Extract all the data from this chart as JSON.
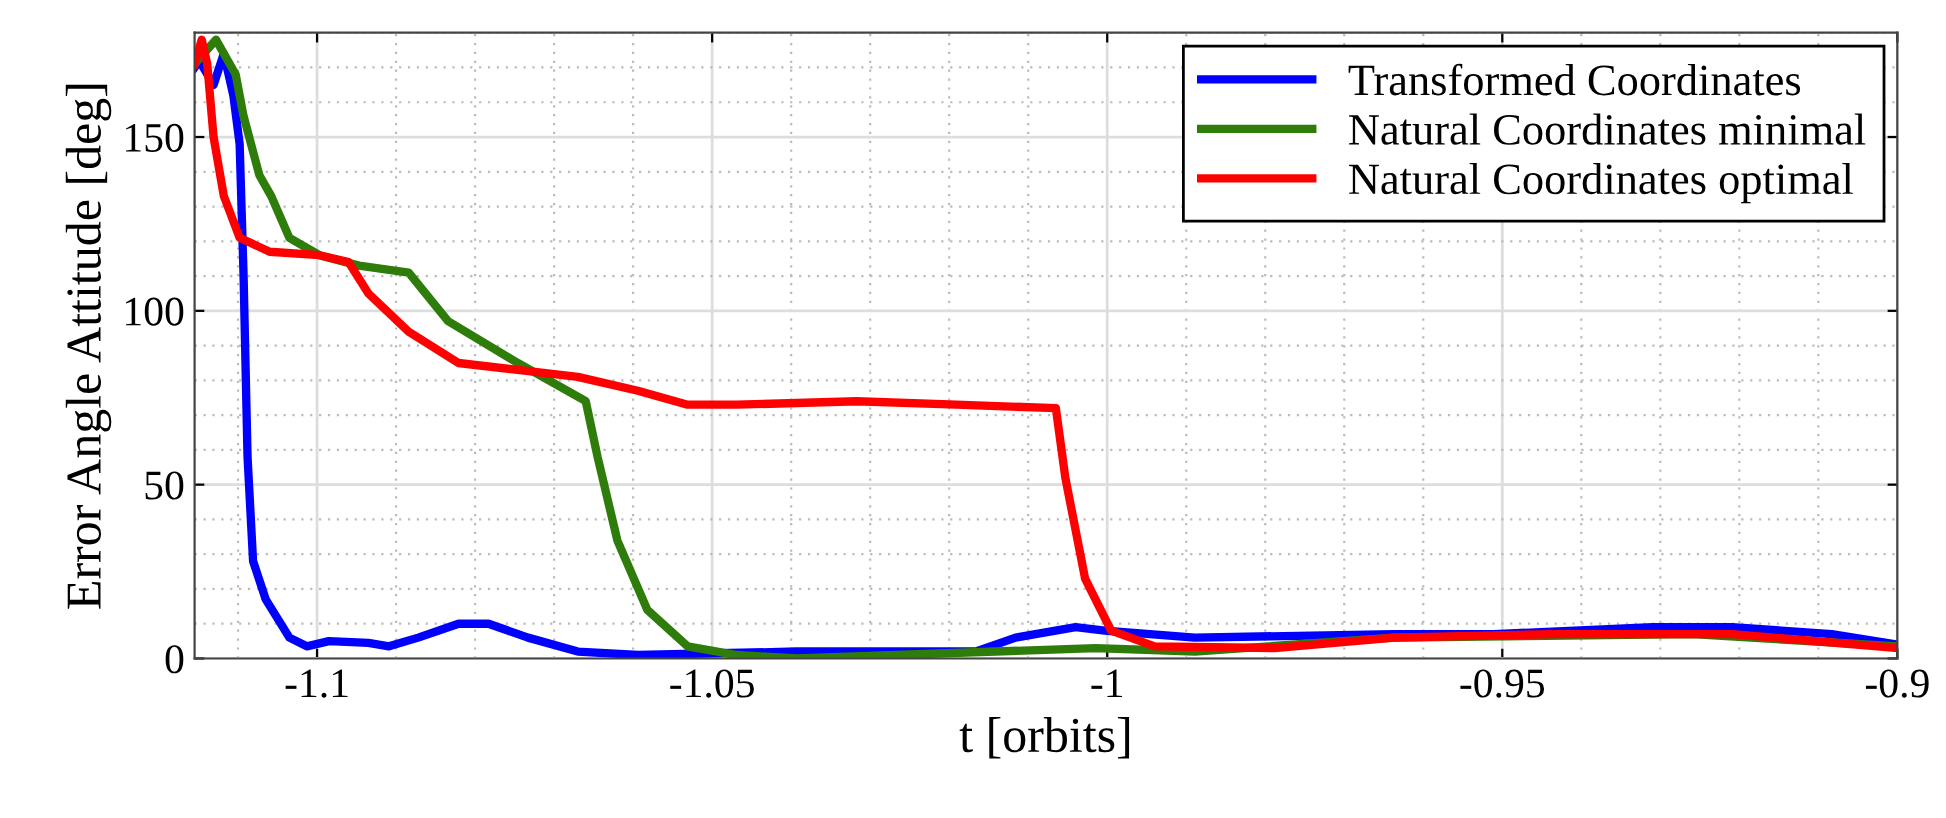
{
  "chart_data": {
    "type": "line",
    "xlabel": "t [orbits]",
    "ylabel": "Error Angle Attitude [deg]",
    "xlim": [
      -1.1155,
      -0.9
    ],
    "ylim": [
      0,
      180
    ],
    "xticks": [
      {
        "value": -1.1,
        "label": "-1.1"
      },
      {
        "value": -1.05,
        "label": "-1.05"
      },
      {
        "value": -1,
        "label": "-1"
      },
      {
        "value": -0.95,
        "label": "-0.95"
      },
      {
        "value": -0.9,
        "label": "-0.9"
      }
    ],
    "yticks": [
      0,
      50,
      100,
      150
    ],
    "grid": true,
    "legend": "top right",
    "line_style": "solid",
    "marker": "none",
    "series": [
      {
        "name": "Transformed Coordinates",
        "color": "#0000ff",
        "x": [
          -1.1155,
          -1.1149,
          -1.1131,
          -1.1118,
          -1.1106,
          -1.1098,
          -1.1093,
          -1.1088,
          -1.1081,
          -1.1065,
          -1.1035,
          -1.1013,
          -1.0985,
          -1.0935,
          -1.0909,
          -1.0872,
          -1.0821,
          -1.0783,
          -1.0733,
          -1.067,
          -1.0594,
          -1.0393,
          -1.0166,
          -1.0116,
          -1.004,
          -1.0003,
          -0.9889,
          -0.9637,
          -0.9511,
          -0.931,
          -0.9209,
          -0.9083,
          -0.9
        ],
        "values": [
          170,
          172,
          165,
          174,
          162,
          148,
          110,
          58,
          28,
          17,
          6,
          3.5,
          5,
          4.5,
          3.5,
          6,
          10,
          10,
          6,
          2,
          1,
          2,
          2,
          6,
          9,
          8,
          6,
          7,
          7,
          9,
          9,
          7,
          4
        ]
      },
      {
        "name": "Natural Coordinates minimal",
        "color": "#2e7d0a",
        "x": [
          -1.1155,
          -1.1128,
          -1.1103,
          -1.1093,
          -1.1073,
          -1.1058,
          -1.1035,
          -1.0997,
          -1.0947,
          -1.0884,
          -1.0834,
          -1.0746,
          -1.066,
          -1.0645,
          -1.062,
          -1.0582,
          -1.0531,
          -1.0469,
          -1.0393,
          -1.0267,
          -1.0141,
          -1.0015,
          -0.9889,
          -0.9637,
          -0.9259,
          -0.9
        ],
        "values": [
          171,
          178,
          168,
          156,
          139,
          133,
          121,
          116,
          113,
          111,
          97,
          85,
          74,
          58,
          34,
          14,
          3.5,
          1,
          0,
          1,
          2,
          3,
          2,
          6,
          7,
          3.5
        ]
      },
      {
        "name": "Natural Coordinates optimal",
        "color": "#ff0000",
        "x": [
          -1.1155,
          -1.1146,
          -1.1139,
          -1.1131,
          -1.1118,
          -1.1098,
          -1.106,
          -1.0997,
          -1.096,
          -1.0935,
          -1.0884,
          -1.0821,
          -1.0746,
          -1.067,
          -1.0594,
          -1.0531,
          -1.0469,
          -1.0317,
          -1.0191,
          -1.0065,
          -1.0053,
          -1.0028,
          -0.9995,
          -0.994,
          -0.9788,
          -0.9637,
          -0.9436,
          -0.9209,
          -0.9
        ],
        "values": [
          171,
          178,
          171,
          150,
          133,
          121,
          117,
          116,
          114,
          105,
          94,
          85,
          83,
          81,
          77,
          73,
          73,
          74,
          73,
          72,
          52,
          23,
          8,
          3.5,
          3,
          6,
          7,
          7,
          3
        ]
      }
    ]
  }
}
